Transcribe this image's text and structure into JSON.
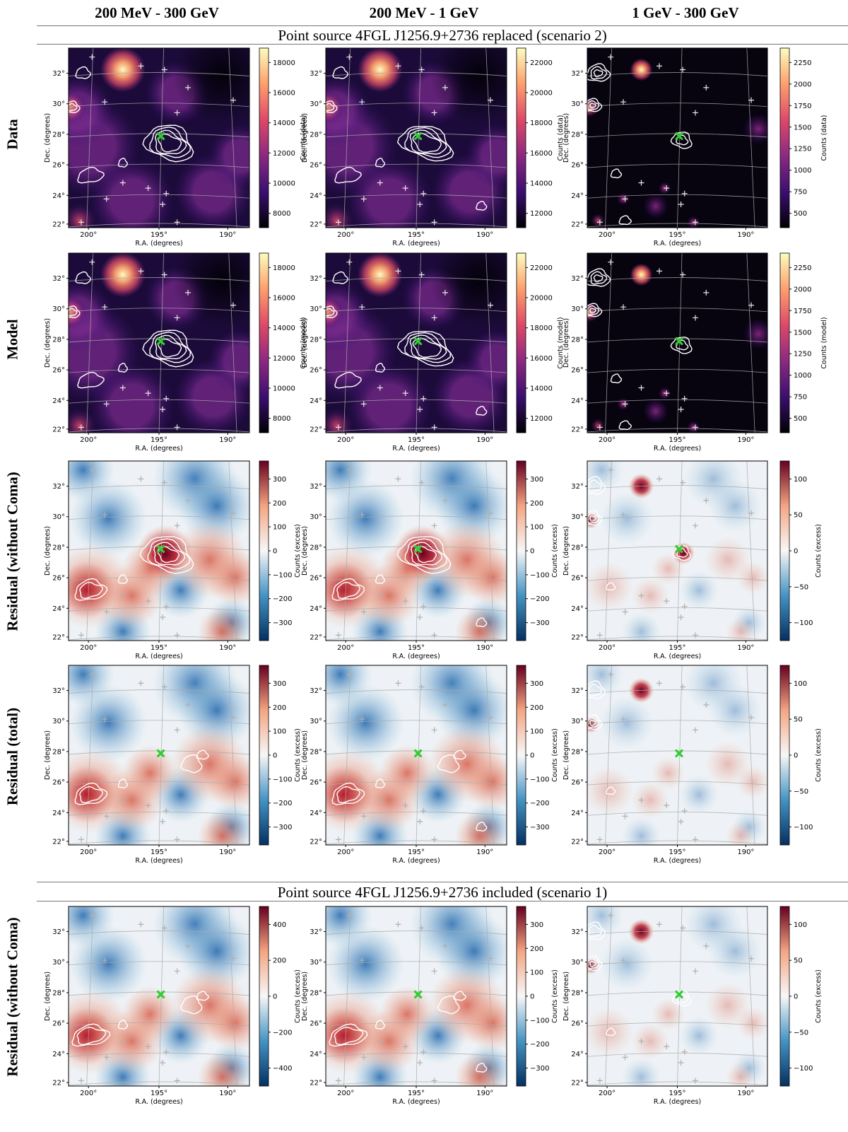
{
  "columns": [
    {
      "label": "200 MeV - 300 GeV"
    },
    {
      "label": "200 MeV - 1 GeV"
    },
    {
      "label": "1 GeV - 300 GeV"
    }
  ],
  "scenario2_title": "Point source 4FGL J1256.9+2736 replaced (scenario 2)",
  "scenario1_title": "Point source 4FGL J1256.9+2736 included (scenario 1)",
  "rows": [
    {
      "label": "Data",
      "kind": "counts",
      "cbar_label": "Counts (data)",
      "ticks": [
        [
          "8000",
          "10000",
          "12000",
          "14000",
          "16000",
          "18000"
        ],
        [
          "12000",
          "14000",
          "16000",
          "18000",
          "20000",
          "22000"
        ],
        [
          "500",
          "750",
          "1000",
          "1250",
          "1500",
          "1750",
          "2000",
          "2250"
        ]
      ]
    },
    {
      "label": "Model",
      "kind": "counts",
      "cbar_label": "Counts (model)",
      "ticks": [
        [
          "8000",
          "10000",
          "12000",
          "14000",
          "16000",
          "18000"
        ],
        [
          "12000",
          "14000",
          "16000",
          "18000",
          "20000",
          "22000"
        ],
        [
          "500",
          "750",
          "1000",
          "1250",
          "1500",
          "1750",
          "2000",
          "2250"
        ]
      ]
    },
    {
      "label": "Residual (without Coma)",
      "kind": "residual",
      "variant": "nocoma",
      "cbar_label": "Counts (excess)",
      "ticks": [
        [
          "300",
          "200",
          "100",
          "0",
          "−100",
          "−200",
          "−300"
        ],
        [
          "300",
          "200",
          "100",
          "0",
          "−100",
          "−200",
          "−300"
        ],
        [
          "100",
          "50",
          "0",
          "−50",
          "−100"
        ]
      ]
    },
    {
      "label": "Residual (total)",
      "kind": "residual",
      "variant": "total",
      "cbar_label": "Counts (excess)",
      "ticks": [
        [
          "300",
          "200",
          "100",
          "0",
          "−100",
          "−200",
          "−300"
        ],
        [
          "300",
          "200",
          "100",
          "0",
          "−100",
          "−200",
          "−300"
        ],
        [
          "100",
          "50",
          "0",
          "−50",
          "−100"
        ]
      ]
    },
    {
      "label": "Residual (without Coma)",
      "kind": "residual",
      "variant": "s1",
      "cbar_label": "Counts (excess)",
      "ticks": [
        [
          "400",
          "200",
          "0",
          "−200",
          "−400"
        ],
        [
          "300",
          "200",
          "100",
          "0",
          "−100",
          "−200",
          "−300"
        ],
        [
          "100",
          "50",
          "0",
          "−50",
          "−100"
        ]
      ]
    }
  ],
  "axes": {
    "xlabel": "R.A. (degrees)",
    "ylabel": "Dec. (degrees)",
    "xticks": [
      "200°",
      "195°",
      "190°"
    ],
    "yticks": [
      "32°",
      "30°",
      "28°",
      "26°",
      "24°",
      "22°"
    ]
  },
  "colors": {
    "counts_cmap": [
      "#000004",
      "#3b0f70",
      "#8c2981",
      "#de4968",
      "#fe9f6d",
      "#fcfdbf"
    ],
    "residual_cmap": [
      "#053061",
      "#4393c3",
      "#f7f7f7",
      "#f4a582",
      "#67001f"
    ],
    "contours": "#ffffff",
    "source_marker": "#33cc33",
    "grid": "#aaaaaa"
  }
}
